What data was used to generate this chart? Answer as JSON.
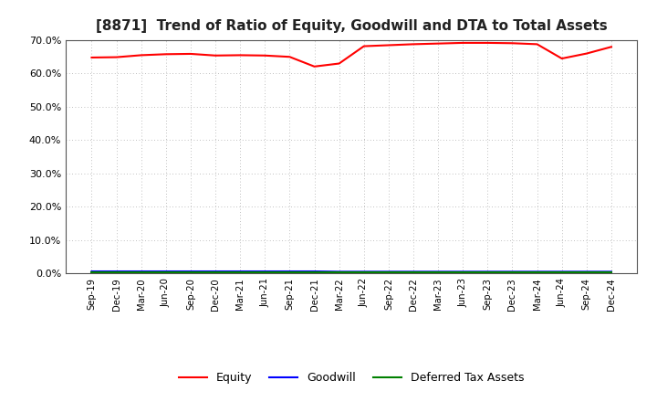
{
  "title": "[8871]  Trend of Ratio of Equity, Goodwill and DTA to Total Assets",
  "x_labels": [
    "Sep-19",
    "Dec-19",
    "Mar-20",
    "Jun-20",
    "Sep-20",
    "Dec-20",
    "Mar-21",
    "Jun-21",
    "Sep-21",
    "Dec-21",
    "Mar-22",
    "Jun-22",
    "Sep-22",
    "Dec-22",
    "Mar-23",
    "Jun-23",
    "Sep-23",
    "Dec-23",
    "Mar-24",
    "Jun-24",
    "Sep-24",
    "Dec-24"
  ],
  "equity": [
    0.648,
    0.649,
    0.655,
    0.658,
    0.659,
    0.654,
    0.655,
    0.654,
    0.65,
    0.621,
    0.63,
    0.682,
    0.685,
    0.688,
    0.69,
    0.692,
    0.692,
    0.691,
    0.688,
    0.645,
    0.66,
    0.68
  ],
  "goodwill": [
    0.006,
    0.006,
    0.006,
    0.006,
    0.006,
    0.006,
    0.006,
    0.006,
    0.006,
    0.006,
    0.005,
    0.005,
    0.005,
    0.005,
    0.005,
    0.005,
    0.005,
    0.005,
    0.005,
    0.005,
    0.005,
    0.005
  ],
  "dta": [
    0.004,
    0.004,
    0.004,
    0.004,
    0.004,
    0.004,
    0.004,
    0.004,
    0.004,
    0.004,
    0.004,
    0.004,
    0.004,
    0.004,
    0.004,
    0.004,
    0.004,
    0.004,
    0.004,
    0.004,
    0.004,
    0.004
  ],
  "equity_color": "#FF0000",
  "goodwill_color": "#0000FF",
  "dta_color": "#008000",
  "ylim": [
    0.0,
    0.7
  ],
  "yticks": [
    0.0,
    0.1,
    0.2,
    0.3,
    0.4,
    0.5,
    0.6,
    0.7
  ],
  "background_color": "#FFFFFF",
  "plot_bg_color": "#FFFFFF",
  "grid_color": "#AAAAAA",
  "title_fontsize": 11,
  "legend_labels": [
    "Equity",
    "Goodwill",
    "Deferred Tax Assets"
  ]
}
